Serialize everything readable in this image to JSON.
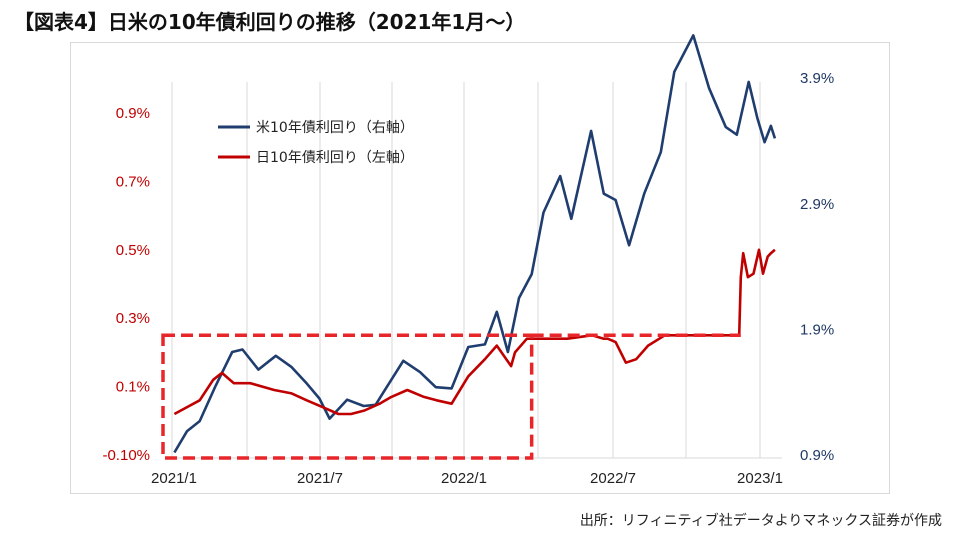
{
  "page": {
    "title": "【図表4】日米の10年債利回りの推移（2021年1月〜）",
    "source": "出所：リフィニティブ社データよりマネックス証券が作成"
  },
  "colors": {
    "us_series": "#1f3d6e",
    "jp_series": "#c00000",
    "highlight_box": "#e8262a",
    "grid": "#d9d9d9"
  },
  "chart_data": {
    "type": "line",
    "title": "",
    "x_ticks": [
      "2021/1",
      "2021/7",
      "2022/1",
      "2022/7",
      "2023/1"
    ],
    "y_left": {
      "ticks": [
        "0.9%",
        "0.7%",
        "0.5%",
        "0.3%",
        "0.1%",
        "-0.10%"
      ],
      "range": [
        -0.1,
        0.9
      ]
    },
    "y_right": {
      "ticks": [
        "3.9%",
        "2.9%",
        "1.9%",
        "0.9%"
      ],
      "range": [
        0.9,
        4.1
      ]
    },
    "grid": "vertical",
    "legend_position": "top-left",
    "legend": [
      "米10年債利回り（右軸）",
      "日10年債利回り（左軸）"
    ],
    "series": [
      {
        "name": "米10年債利回り（右軸）",
        "axis": "right",
        "points": [
          [
            "2021-01-04",
            0.92
          ],
          [
            "2021-01-20",
            1.09
          ],
          [
            "2021-02-05",
            1.17
          ],
          [
            "2021-02-25",
            1.45
          ],
          [
            "2021-03-18",
            1.72
          ],
          [
            "2021-03-31",
            1.74
          ],
          [
            "2021-04-20",
            1.58
          ],
          [
            "2021-05-12",
            1.69
          ],
          [
            "2021-06-01",
            1.6
          ],
          [
            "2021-06-20",
            1.47
          ],
          [
            "2021-07-06",
            1.35
          ],
          [
            "2021-07-19",
            1.19
          ],
          [
            "2021-08-10",
            1.34
          ],
          [
            "2021-08-31",
            1.29
          ],
          [
            "2021-09-15",
            1.3
          ],
          [
            "2021-10-01",
            1.46
          ],
          [
            "2021-10-20",
            1.65
          ],
          [
            "2021-11-10",
            1.56
          ],
          [
            "2021-11-30",
            1.44
          ],
          [
            "2021-12-20",
            1.43
          ],
          [
            "2022-01-10",
            1.76
          ],
          [
            "2022-01-31",
            1.78
          ],
          [
            "2022-02-15",
            2.04
          ],
          [
            "2022-03-01",
            1.72
          ],
          [
            "2022-03-15",
            2.15
          ],
          [
            "2022-03-31",
            2.34
          ],
          [
            "2022-04-15",
            2.83
          ],
          [
            "2022-05-06",
            3.12
          ],
          [
            "2022-05-20",
            2.78
          ],
          [
            "2022-06-14",
            3.48
          ],
          [
            "2022-06-30",
            2.98
          ],
          [
            "2022-07-15",
            2.93
          ],
          [
            "2022-08-01",
            2.57
          ],
          [
            "2022-08-20",
            2.98
          ],
          [
            "2022-09-10",
            3.31
          ],
          [
            "2022-09-27",
            3.95
          ],
          [
            "2022-10-21",
            4.24
          ],
          [
            "2022-11-10",
            3.82
          ],
          [
            "2022-12-01",
            3.51
          ],
          [
            "2022-12-15",
            3.45
          ],
          [
            "2022-12-30",
            3.87
          ],
          [
            "2023-01-10",
            3.58
          ],
          [
            "2023-01-19",
            3.39
          ],
          [
            "2023-01-27",
            3.52
          ],
          [
            "2023-02-01",
            3.42
          ]
        ]
      },
      {
        "name": "日10年債利回り（左軸）",
        "axis": "left",
        "points": [
          [
            "2021-01-04",
            0.02
          ],
          [
            "2021-01-20",
            0.04
          ],
          [
            "2021-02-05",
            0.06
          ],
          [
            "2021-02-22",
            0.12
          ],
          [
            "2021-03-05",
            0.14
          ],
          [
            "2021-03-20",
            0.11
          ],
          [
            "2021-04-10",
            0.11
          ],
          [
            "2021-05-10",
            0.09
          ],
          [
            "2021-06-01",
            0.08
          ],
          [
            "2021-06-20",
            0.06
          ],
          [
            "2021-07-10",
            0.04
          ],
          [
            "2021-07-30",
            0.02
          ],
          [
            "2021-08-15",
            0.02
          ],
          [
            "2021-09-01",
            0.03
          ],
          [
            "2021-09-20",
            0.05
          ],
          [
            "2021-10-05",
            0.07
          ],
          [
            "2021-10-25",
            0.09
          ],
          [
            "2021-11-15",
            0.07
          ],
          [
            "2021-12-01",
            0.06
          ],
          [
            "2021-12-20",
            0.05
          ],
          [
            "2022-01-10",
            0.13
          ],
          [
            "2022-01-31",
            0.18
          ],
          [
            "2022-02-15",
            0.22
          ],
          [
            "2022-03-05",
            0.16
          ],
          [
            "2022-03-10",
            0.2
          ],
          [
            "2022-03-25",
            0.24
          ],
          [
            "2022-04-15",
            0.24
          ],
          [
            "2022-05-15",
            0.24
          ],
          [
            "2022-06-15",
            0.25
          ],
          [
            "2022-06-30",
            0.24
          ],
          [
            "2022-07-05",
            0.24
          ],
          [
            "2022-07-15",
            0.23
          ],
          [
            "2022-07-28",
            0.17
          ],
          [
            "2022-08-10",
            0.18
          ],
          [
            "2022-08-25",
            0.22
          ],
          [
            "2022-09-15",
            0.25
          ],
          [
            "2022-10-15",
            0.25
          ],
          [
            "2022-11-15",
            0.25
          ],
          [
            "2022-12-18",
            0.25
          ],
          [
            "2022-12-20",
            0.42
          ],
          [
            "2022-12-23",
            0.49
          ],
          [
            "2022-12-29",
            0.42
          ],
          [
            "2023-01-05",
            0.43
          ],
          [
            "2023-01-12",
            0.5
          ],
          [
            "2023-01-17",
            0.43
          ],
          [
            "2023-01-23",
            0.48
          ],
          [
            "2023-01-27",
            0.49
          ],
          [
            "2023-02-01",
            0.5
          ]
        ]
      }
    ],
    "annotations": [
      {
        "type": "dashed-rectangle",
        "x_from": "2021-01-01",
        "x_to": "2022-03-31",
        "y_left_from": -0.1,
        "y_left_to": 0.25
      },
      {
        "type": "dashed-line",
        "x_from": "2022-03-31",
        "x_to": "2022-12-20",
        "y_left": 0.25
      }
    ]
  }
}
